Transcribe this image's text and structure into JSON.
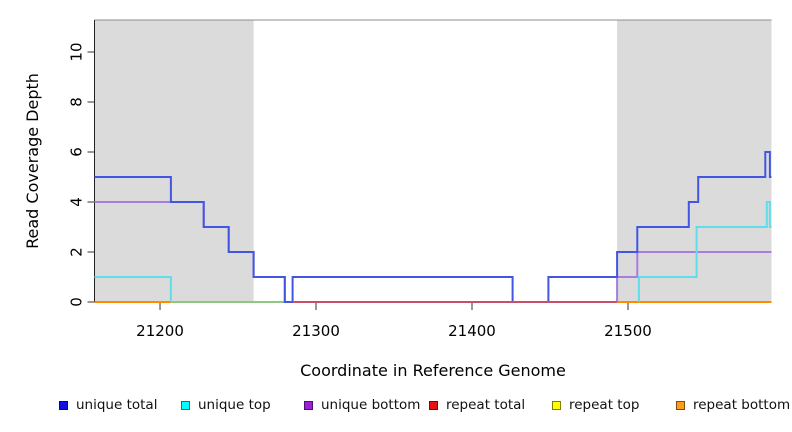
{
  "chart_data": {
    "type": "line",
    "subtype": "step-coverage",
    "title": "",
    "xlabel": "Coordinate in Reference Genome",
    "ylabel": "Read Coverage Depth",
    "xlim": [
      21158,
      21592
    ],
    "ylim": [
      0,
      11.28
    ],
    "xticks": [
      21200,
      21300,
      21400,
      21500
    ],
    "yticks": [
      0,
      2,
      4,
      6,
      8,
      10
    ],
    "grid": false,
    "legend_position": "bottom",
    "shaded_regions": [
      {
        "x0": 21158,
        "x1": 21260,
        "color": "#dbdbdb"
      },
      {
        "x0": 21493,
        "x1": 21592,
        "color": "#dbdbdb"
      }
    ],
    "series": [
      {
        "name": "repeat bottom",
        "color": "#ff8c00",
        "lines": [
          [
            [
              21158,
              0
            ],
            [
              21207,
              0
            ]
          ],
          [
            [
              21493,
              0
            ],
            [
              21592,
              0
            ]
          ]
        ]
      },
      {
        "name": "repeat top",
        "color": "#8cc97e",
        "lines": [
          [
            [
              21207,
              0
            ],
            [
              21280,
              0
            ]
          ]
        ]
      },
      {
        "name": "unique bottom",
        "color": "#a87ce0",
        "lines": [
          [
            [
              21158,
              4
            ],
            [
              21228,
              4
            ],
            [
              21228,
              3
            ],
            [
              21244,
              3
            ],
            [
              21244,
              2
            ],
            [
              21260,
              2
            ],
            [
              21260,
              1
            ],
            [
              21280,
              1
            ],
            [
              21280,
              0
            ]
          ],
          [
            [
              21493,
              0
            ],
            [
              21493,
              1
            ],
            [
              21506,
              1
            ],
            [
              21506,
              2
            ],
            [
              21592,
              2
            ]
          ]
        ]
      },
      {
        "name": "unique top",
        "color": "#5fdde8",
        "lines": [
          [
            [
              21158,
              1
            ],
            [
              21207,
              1
            ],
            [
              21207,
              0
            ]
          ],
          [
            [
              21507,
              0
            ],
            [
              21507,
              1
            ],
            [
              21544,
              1
            ],
            [
              21544,
              3
            ],
            [
              21589,
              3
            ],
            [
              21589,
              4
            ],
            [
              21591,
              4
            ],
            [
              21591,
              3
            ],
            [
              21592,
              3
            ]
          ]
        ]
      },
      {
        "name": "unique total",
        "color": "#4156e2",
        "lines": [
          [
            [
              21158,
              5
            ],
            [
              21207,
              5
            ],
            [
              21207,
              4
            ],
            [
              21228,
              4
            ],
            [
              21228,
              3
            ],
            [
              21244,
              3
            ],
            [
              21244,
              2
            ],
            [
              21260,
              2
            ],
            [
              21260,
              1
            ],
            [
              21280,
              1
            ],
            [
              21280,
              0
            ],
            [
              21285,
              0
            ],
            [
              21285,
              1
            ],
            [
              21426,
              1
            ],
            [
              21426,
              0
            ],
            [
              21449,
              0
            ],
            [
              21449,
              1
            ],
            [
              21493,
              1
            ],
            [
              21493,
              2
            ],
            [
              21506,
              2
            ],
            [
              21506,
              3
            ],
            [
              21539,
              3
            ],
            [
              21539,
              4
            ],
            [
              21545,
              4
            ],
            [
              21545,
              5
            ],
            [
              21588,
              5
            ],
            [
              21588,
              6
            ],
            [
              21591,
              6
            ],
            [
              21591,
              5
            ],
            [
              21592,
              5
            ]
          ]
        ]
      },
      {
        "name": "repeat total",
        "color": "#c94f68",
        "lines": [
          [
            [
              21285,
              0
            ],
            [
              21493,
              0
            ]
          ]
        ]
      }
    ]
  },
  "legend": {
    "entries": [
      {
        "label": "unique total",
        "color": "#1010e6"
      },
      {
        "label": "unique top",
        "color": "#00ffff"
      },
      {
        "label": "unique bottom",
        "color": "#991fd8"
      },
      {
        "label": "repeat total",
        "color": "#e51212"
      },
      {
        "label": "repeat top",
        "color": "#ffff00"
      },
      {
        "label": "repeat bottom",
        "color": "#ff9d14"
      }
    ]
  }
}
